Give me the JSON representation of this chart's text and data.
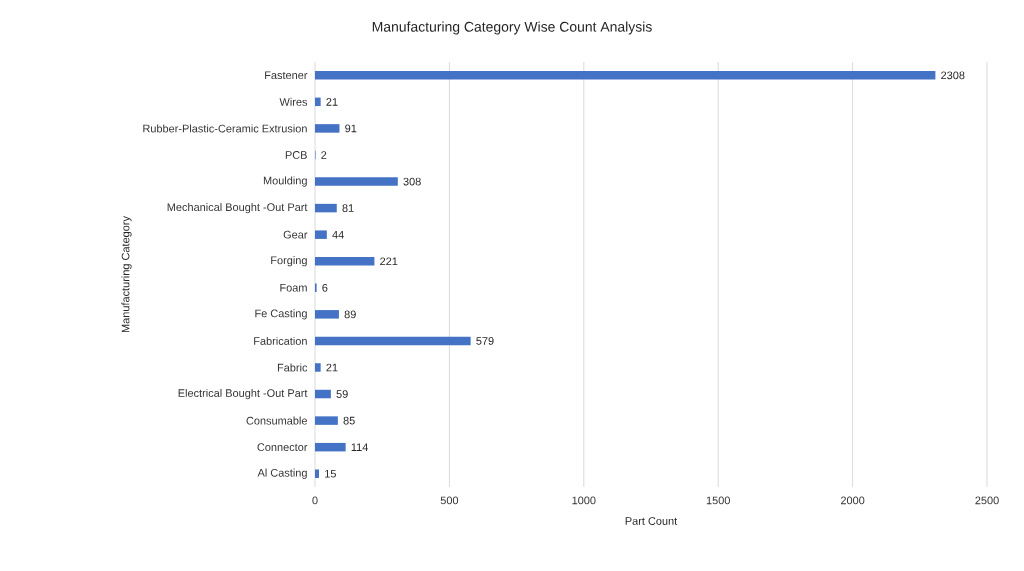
{
  "chart_data": {
    "type": "bar",
    "orientation": "horizontal",
    "title": "Manufacturing Category Wise Count Analysis",
    "xlabel": "Part Count",
    "ylabel": "Manufacturing Category",
    "categories": [
      "Fastener",
      "Wires",
      "Rubber-Plastic-Ceramic Extrusion",
      "PCB",
      "Moulding",
      "Mechanical Bought -Out Part",
      "Gear",
      "Forging",
      "Foam",
      "Fe Casting",
      "Fabrication",
      "Fabric",
      "Electrical Bought -Out Part",
      "Consumable",
      "Connector",
      "Al Casting"
    ],
    "values": [
      2308,
      21,
      91,
      2,
      308,
      81,
      44,
      221,
      6,
      89,
      579,
      21,
      59,
      85,
      114,
      15
    ],
    "color": "#4472c4",
    "xlim": [
      0,
      2500
    ],
    "xticks": [
      0,
      500,
      1000,
      1500,
      2000,
      2500
    ],
    "grid": "x",
    "data_labels": true
  }
}
